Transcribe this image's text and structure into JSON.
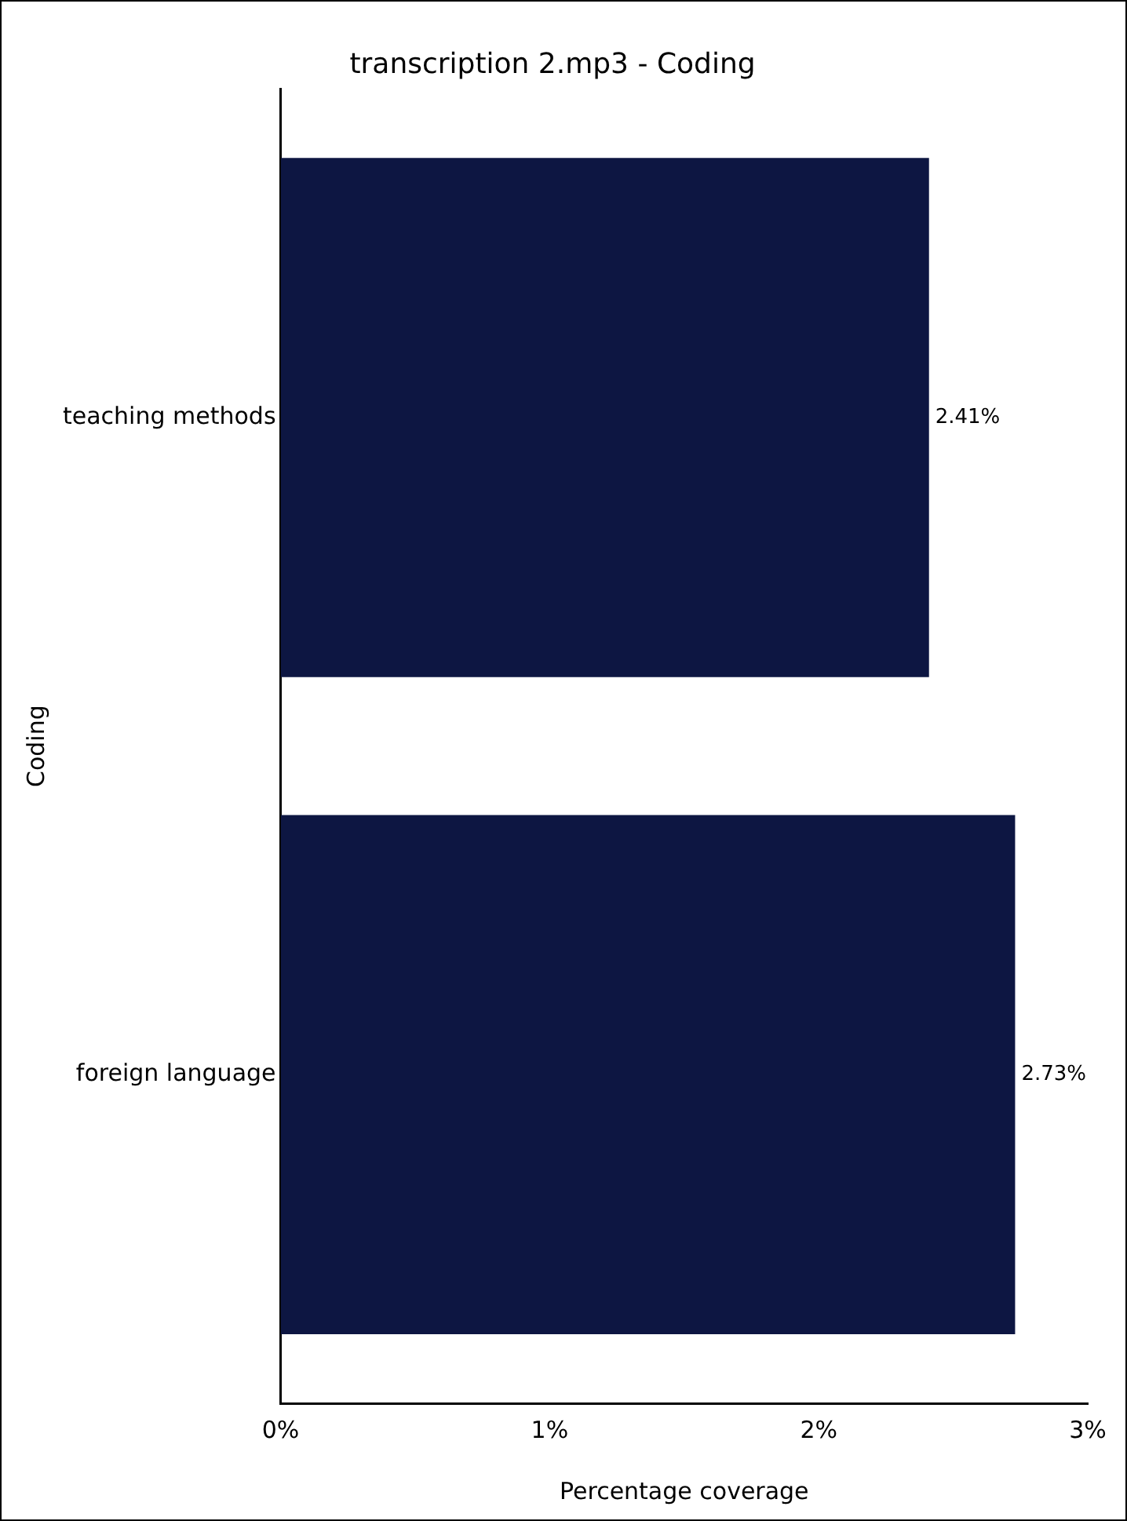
{
  "chart_data": {
    "type": "bar",
    "orientation": "horizontal",
    "title": "transcription 2.mp3 - Coding",
    "xlabel": "Percentage coverage",
    "ylabel": "Coding",
    "categories": [
      "teaching methods",
      "foreign language"
    ],
    "values": [
      2.41,
      2.73
    ],
    "color": "#0d1642",
    "value_labels": [
      "2.41%",
      "2.73%"
    ],
    "xlim": [
      0,
      3
    ],
    "xticks": [
      {
        "value": 0,
        "label": "0%"
      },
      {
        "value": 1,
        "label": "1%"
      },
      {
        "value": 2,
        "label": "2%"
      },
      {
        "value": 3,
        "label": "3%"
      }
    ],
    "grid": false,
    "legend": false
  }
}
